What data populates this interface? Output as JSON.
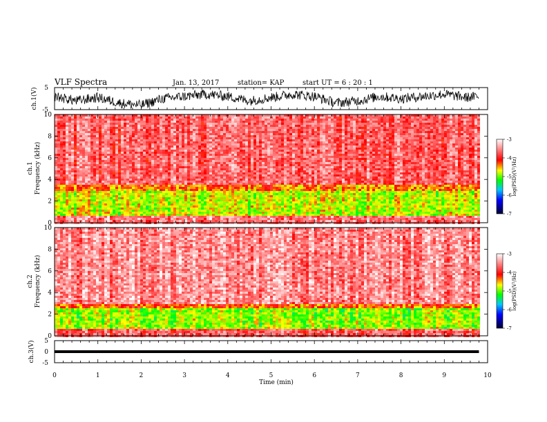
{
  "header": {
    "title": "VLF Spectra",
    "date": "Jan. 13, 2017",
    "station": "station= KAP",
    "start": "start  UT  =   6  : 20 : 1"
  },
  "chart_data": [
    {
      "type": "line",
      "panel": "ch1-waveform",
      "ylabel": "ch.1(V)",
      "ylim": [
        -5,
        5
      ],
      "ytick_labels": [
        "5",
        "-5"
      ],
      "xlim": [
        0,
        10
      ],
      "data_extent_min": 9.8,
      "series": [
        {
          "color": "#000000",
          "note_values": "noisy waveform, mostly between -3 and 3 V",
          "x": [
            0,
            0.5,
            1,
            1.5,
            2,
            2.5,
            3,
            3.5,
            4,
            4.5,
            5,
            5.5,
            6,
            6.5,
            7,
            7.5,
            8,
            8.5,
            9,
            9.5,
            9.8
          ],
          "y": [
            1,
            -1,
            0.5,
            -2,
            -3,
            0,
            1,
            2,
            1,
            -1,
            0.5,
            2,
            1,
            -2,
            -1,
            1,
            0,
            1,
            2,
            0.5,
            1
          ]
        }
      ]
    },
    {
      "type": "heatmap",
      "panel": "ch1-spectrogram",
      "ylabel_top": "ch.1",
      "ylabel": "Frequency (kHz)",
      "ylim": [
        0,
        10
      ],
      "ytick_labels": [
        "0",
        "2",
        "4",
        "6",
        "8",
        "10"
      ],
      "xlim": [
        0,
        10
      ],
      "data_extent_min": 9.8,
      "bands_khz": [
        {
          "from": 0,
          "to": 0.8,
          "level": -3.6
        },
        {
          "from": 0.8,
          "to": 3.0,
          "level": -4.8
        },
        {
          "from": 3.0,
          "to": 3.6,
          "level": -4.4
        },
        {
          "from": 3.6,
          "to": 10,
          "level": -3.7
        }
      ],
      "colorbar": {
        "label": "log(PSD)(V²/Hz)",
        "ticks": [
          "-3",
          "-4",
          "-5",
          "-6",
          "-7"
        ],
        "range": [
          -7,
          -3
        ]
      }
    },
    {
      "type": "heatmap",
      "panel": "ch2-spectrogram",
      "ylabel_top": "ch.2",
      "ylabel": "Frequency (kHz)",
      "ylim": [
        0,
        10
      ],
      "ytick_labels": [
        "0",
        "2",
        "4",
        "6",
        "8",
        "10"
      ],
      "xlim": [
        0,
        10
      ],
      "data_extent_min": 9.8,
      "bands_khz": [
        {
          "from": 0,
          "to": 0.8,
          "level": -3.7
        },
        {
          "from": 0.8,
          "to": 2.6,
          "level": -4.9
        },
        {
          "from": 2.6,
          "to": 3.0,
          "level": -4.3
        },
        {
          "from": 3.0,
          "to": 10,
          "level": -3.5
        }
      ],
      "colorbar": {
        "label": "log(PSD)(V²/Hz)",
        "ticks": [
          "-3",
          "-4",
          "-5",
          "-6",
          "-7"
        ],
        "range": [
          -7,
          -3
        ]
      }
    },
    {
      "type": "line",
      "panel": "ch3-waveform",
      "ylabel": "ch.3(V)",
      "ylim": [
        -5,
        5
      ],
      "ytick_labels": [
        "5",
        "0",
        "-5"
      ],
      "xlim": [
        0,
        10
      ],
      "xlabel": "Time (min)",
      "xtick_labels": [
        "0",
        "1",
        "2",
        "3",
        "4",
        "5",
        "6",
        "7",
        "8",
        "9",
        "10"
      ],
      "data_extent_min": 9.8,
      "series": [
        {
          "color": "#000000",
          "x": [
            0,
            9.8
          ],
          "y": [
            0,
            0
          ]
        }
      ]
    }
  ],
  "colors": {
    "background": "#ffffff",
    "colormap": [
      "#000033",
      "#0000ff",
      "#00ff00",
      "#ffff00",
      "#ff0000",
      "#ffffff"
    ]
  }
}
